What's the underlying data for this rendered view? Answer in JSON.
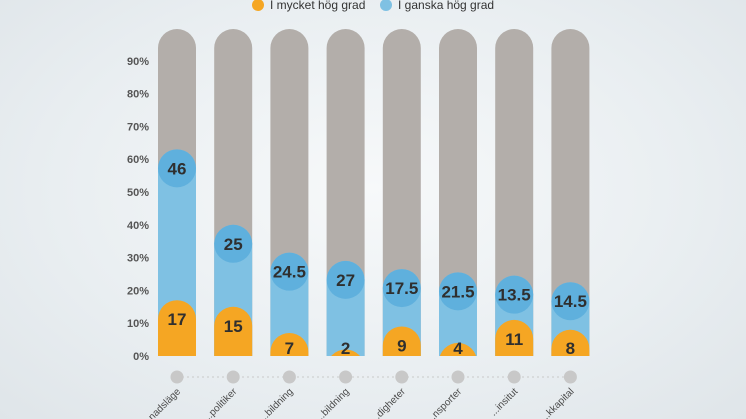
{
  "chart_data": {
    "type": "bar",
    "stacked": true,
    "title": "",
    "xlabel": "",
    "ylabel": "",
    "ylim": [
      0,
      100
    ],
    "yticks": [
      "0%",
      "10%",
      "20%",
      "30%",
      "40%",
      "50%",
      "60%",
      "70%",
      "80%",
      "90%"
    ],
    "categories": [
      "...nadsläge",
      "...politiker",
      "...bildning",
      "...bildning",
      "...digheter",
      "...nsporter",
      "...insitut",
      "...kkapital"
    ],
    "series": [
      {
        "name": "I mycket hög grad",
        "color": "#f5a623",
        "values": [
          17,
          15,
          7,
          2,
          9,
          4,
          11,
          8
        ]
      },
      {
        "name": "I ganska hög grad",
        "color": "#7fc1e3",
        "values": [
          46,
          25,
          24.5,
          27,
          17.5,
          21.5,
          13.5,
          14.5
        ]
      }
    ],
    "legend": {
      "position": "top"
    }
  },
  "colors": {
    "background_bar": "#b3aeaa",
    "mycket": "#f5a623",
    "ganska": "#7fc1e3",
    "ganska_cap": "#5fb0dd",
    "mycket_cap": "#f5a623",
    "dot": "#c8c8c8"
  }
}
